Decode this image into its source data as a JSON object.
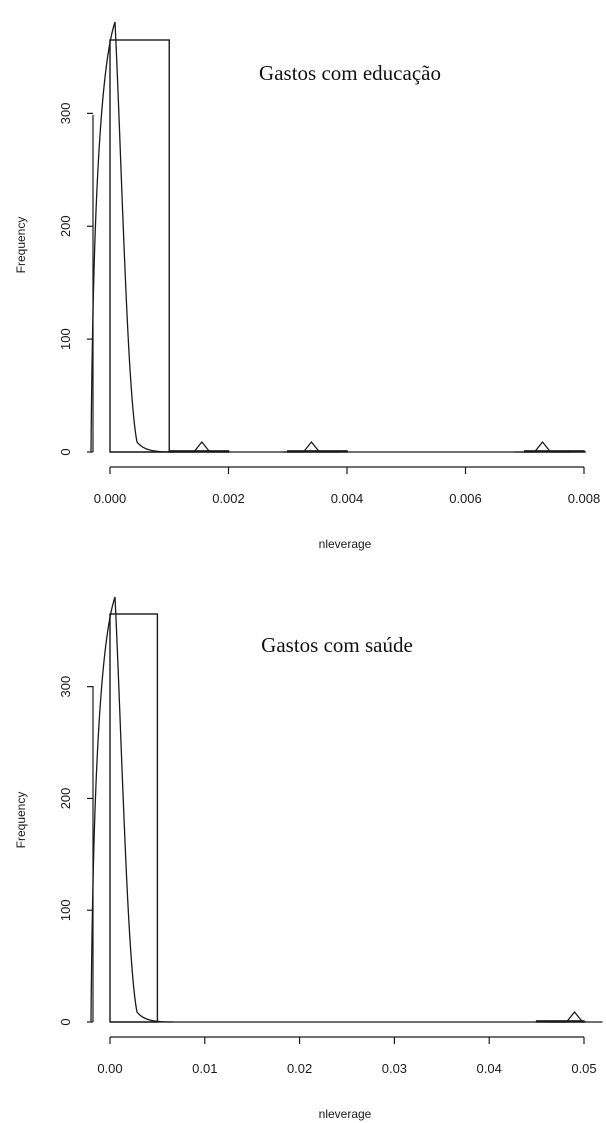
{
  "chart_data": [
    {
      "type": "bar",
      "title": "Gastos com educação",
      "xlabel": "nleverage",
      "ylabel": "Frequency",
      "xlim": [
        0,
        0.008
      ],
      "ylim": [
        0,
        365
      ],
      "x_ticks": [
        "0.000",
        "0.002",
        "0.004",
        "0.006",
        "0.008"
      ],
      "y_ticks": [
        "0",
        "100",
        "200",
        "300"
      ],
      "bin_edges": [
        0,
        0.001,
        0.002,
        0.003,
        0.004,
        0.005,
        0.006,
        0.007,
        0.008
      ],
      "values": [
        365,
        1,
        0,
        1,
        0,
        0,
        0,
        1
      ],
      "density_bumps_x": [
        0.00155,
        0.0034,
        0.0073
      ],
      "grid": false
    },
    {
      "type": "bar",
      "title": "Gastos com saúde",
      "xlabel": "nleverage",
      "ylabel": "Frequency",
      "xlim": [
        0,
        0.05
      ],
      "ylim": [
        0,
        365
      ],
      "x_ticks": [
        "0.00",
        "0.01",
        "0.02",
        "0.03",
        "0.04",
        "0.05"
      ],
      "y_ticks": [
        "0",
        "100",
        "200",
        "300"
      ],
      "bin_edges": [
        0,
        0.005,
        0.01,
        0.015,
        0.02,
        0.025,
        0.03,
        0.035,
        0.04,
        0.045,
        0.05
      ],
      "values": [
        365,
        0,
        0,
        0,
        0,
        0,
        0,
        0,
        0,
        1
      ],
      "density_bumps_x": [
        0.049
      ],
      "grid": false
    }
  ]
}
